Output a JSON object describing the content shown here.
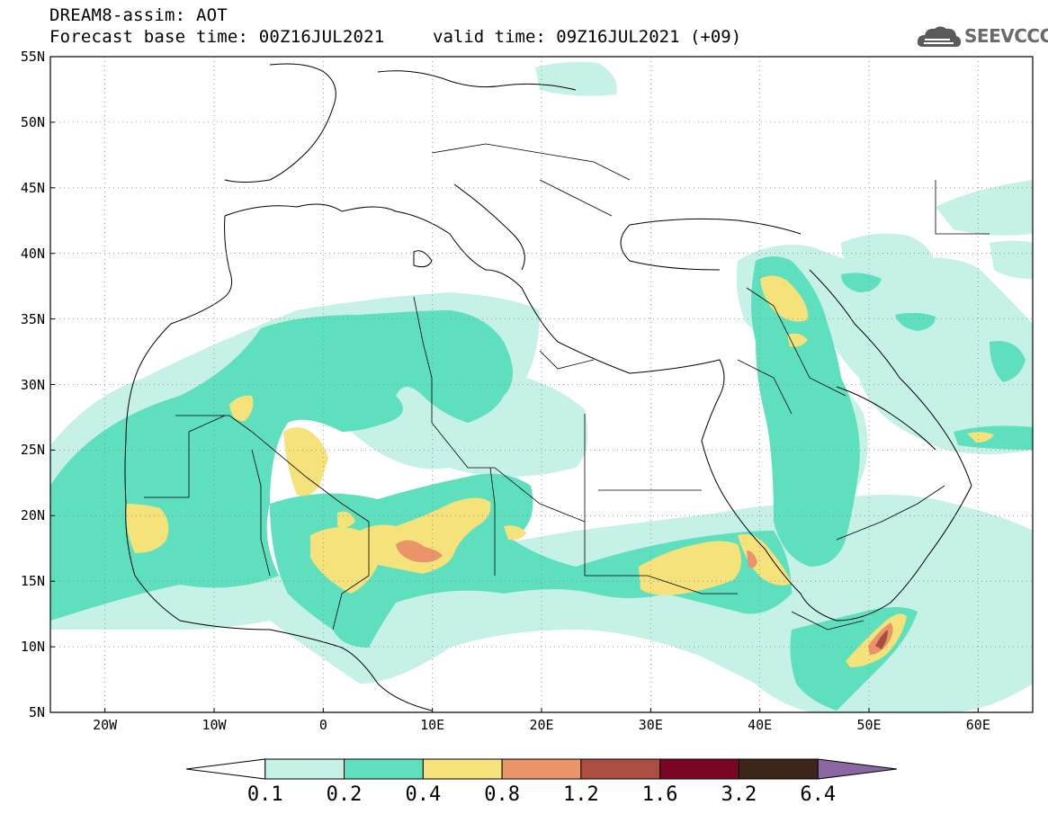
{
  "header": {
    "title": "DREAM8-assim: AOT",
    "forecast_base": "Forecast base time: 00Z16JUL2021",
    "valid_time": "valid time: 09Z16JUL2021 (+09)"
  },
  "logo": {
    "text": "SEEVCCC",
    "icon": "cloud-icon"
  },
  "map": {
    "projection": "lat-lon",
    "lon_range": [
      -25,
      65
    ],
    "lat_range": [
      5,
      55
    ],
    "variable": "Aerosol Optical Thickness",
    "lat_labels": [
      "55N",
      "50N",
      "45N",
      "40N",
      "35N",
      "30N",
      "25N",
      "20N",
      "15N",
      "10N",
      "5N"
    ],
    "lon_labels": [
      "20W",
      "10W",
      "0",
      "10E",
      "20E",
      "30E",
      "40E",
      "50E",
      "60E"
    ]
  },
  "colorbar": {
    "labels": [
      "0.1",
      "0.2",
      "0.4",
      "0.8",
      "1.2",
      "1.6",
      "3.2",
      "6.4"
    ],
    "colors": [
      "#ffffff",
      "#c5f1e6",
      "#5edfbd",
      "#f5e27a",
      "#eb9369",
      "#ac4d41",
      "#7b0624",
      "#3b2617",
      "#8a67a4"
    ]
  },
  "colors": {
    "aot_0_1": "#c5f1e6",
    "aot_0_2": "#5edfbd",
    "aot_0_4": "#f5e27a",
    "aot_0_8": "#eb9369",
    "aot_1_2": "#ac4d41"
  }
}
